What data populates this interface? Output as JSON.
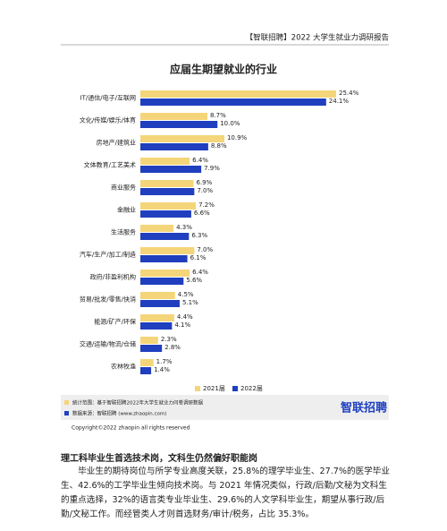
{
  "header": "【智联招聘】2022 大学生就业力调研报告",
  "chart_data": {
    "type": "bar",
    "orientation": "horizontal",
    "title": "应届生期望就业的行业",
    "categories": [
      "IT/通信/电子/互联网",
      "文化/传媒/娱乐/体育",
      "房地产/建筑业",
      "文体教育/工艺美术",
      "商业服务",
      "金融业",
      "生活服务",
      "汽车/生产/加工/制造",
      "政府/非盈利机构",
      "贸易/批发/零售/快消",
      "能源/矿产/环保",
      "交通/运输/物流/仓储",
      "农林牧渔"
    ],
    "series": [
      {
        "name": "2021届",
        "color": "#f5d57a",
        "values": [
          25.4,
          8.7,
          10.9,
          6.4,
          6.9,
          7.2,
          4.3,
          7.0,
          6.4,
          4.5,
          4.4,
          2.3,
          1.7
        ],
        "value_labels": [
          "25.4%",
          "8.7%",
          "10.9%",
          "6.4%",
          "6.9%",
          "7.2%",
          "4.3%",
          "7.0%",
          "6.4%",
          "4.5%",
          "4.4%",
          "2.3%",
          "1.7%"
        ]
      },
      {
        "name": "2022届",
        "color": "#1f3fbf",
        "values": [
          24.1,
          10.0,
          8.8,
          7.9,
          7.0,
          6.6,
          6.3,
          6.1,
          5.6,
          5.1,
          4.1,
          2.8,
          1.4
        ],
        "value_labels": [
          "24.1%",
          "10.0%",
          "8.8%",
          "7.9%",
          "7.0%",
          "6.6%",
          "6.3%",
          "6.1%",
          "5.6%",
          "5.1%",
          "4.1%",
          "2.8%",
          "1.4%"
        ]
      }
    ],
    "legend": "bottom"
  },
  "notes": [
    "统计范围：基于智联招聘2022年大学生就业力问卷调研数据",
    "数据来源：智联招聘 (www.zhaopin.com)"
  ],
  "logo": "智联招聘",
  "copyright": "Copyright©2022 zhaopin all rights reserved",
  "section": {
    "heading": "理工科毕业生首选技术岗，文科生仍然偏好职能岗",
    "paragraph": "毕业生的期待岗位与所学专业高度关联，25.8%的理学毕业生、27.7%的医学毕业生、42.6%的工学毕业生倾向技术岗。与 2021 年情况类似，行政/后勤/文秘为文科生的重点选择，32%的语言类专业毕业生、29.6%的人文学科毕业生，期望从事行政/后勤/文秘工作。而经管类人才则首选财务/审计/税务，占比 35.3%。"
  }
}
